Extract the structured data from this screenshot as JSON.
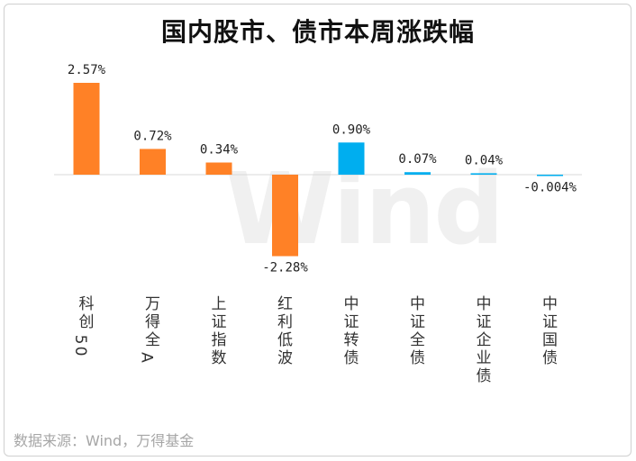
{
  "chart_data": {
    "type": "bar",
    "title": "国内股市、债市本周涨跌幅",
    "categories": [
      "科创50",
      "万得全A",
      "上证指数",
      "红利低波",
      "中证转债",
      "中证全债",
      "中证企业债",
      "中证国债"
    ],
    "values": [
      2.57,
      0.72,
      0.34,
      -2.28,
      0.9,
      0.07,
      0.04,
      -0.004
    ],
    "value_labels": [
      "2.57%",
      "0.72%",
      "0.34%",
      "-2.28%",
      "0.90%",
      "0.07%",
      "0.04%",
      "-0.004%"
    ],
    "bar_colors": [
      "#FF8126",
      "#FF8126",
      "#FF8126",
      "#FF8126",
      "#00AEEF",
      "#00AEEF",
      "#00AEEF",
      "#00AEEF"
    ],
    "xlabel": "",
    "ylabel": "",
    "ylim": [
      -2.28,
      2.57
    ],
    "grid": false,
    "legend": "none"
  },
  "watermark": "Wind",
  "source_note": "数据来源：Wind，万得基金",
  "colors": {
    "stock_bar": "#FF8126",
    "bond_bar": "#00AEEF",
    "axis_line": "#d9d9d9",
    "source_text": "#a6a6a6"
  }
}
